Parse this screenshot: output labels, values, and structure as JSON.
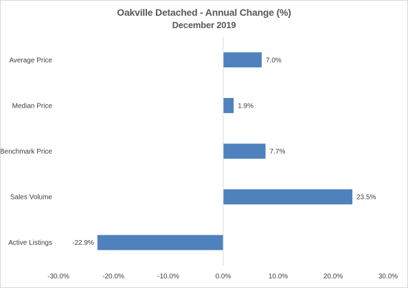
{
  "chart_data": {
    "type": "bar",
    "orientation": "horizontal",
    "title": "Oakville Detached - Annual Change (%)",
    "subtitle": "December 2019",
    "categories": [
      "Average Price",
      "Median Price",
      "Benchmark Price",
      "Sales Volume",
      "Active Listings"
    ],
    "values": [
      7.0,
      1.9,
      7.7,
      23.5,
      -22.9
    ],
    "value_labels": [
      "7.0%",
      "1.9%",
      "7.7%",
      "23.5%",
      "-22.9%"
    ],
    "xlim": [
      -30,
      30
    ],
    "x_ticks": [
      -30,
      -20,
      -10,
      0,
      10,
      20,
      30
    ],
    "x_tick_labels": [
      "-30.0%",
      "-20.0%",
      "-10.0%",
      "0.0%",
      "10.0%",
      "20.0%",
      "30.0%"
    ],
    "xlabel": "",
    "ylabel": "",
    "grid": false,
    "legend": false,
    "bar_color": "#4f81bd"
  }
}
